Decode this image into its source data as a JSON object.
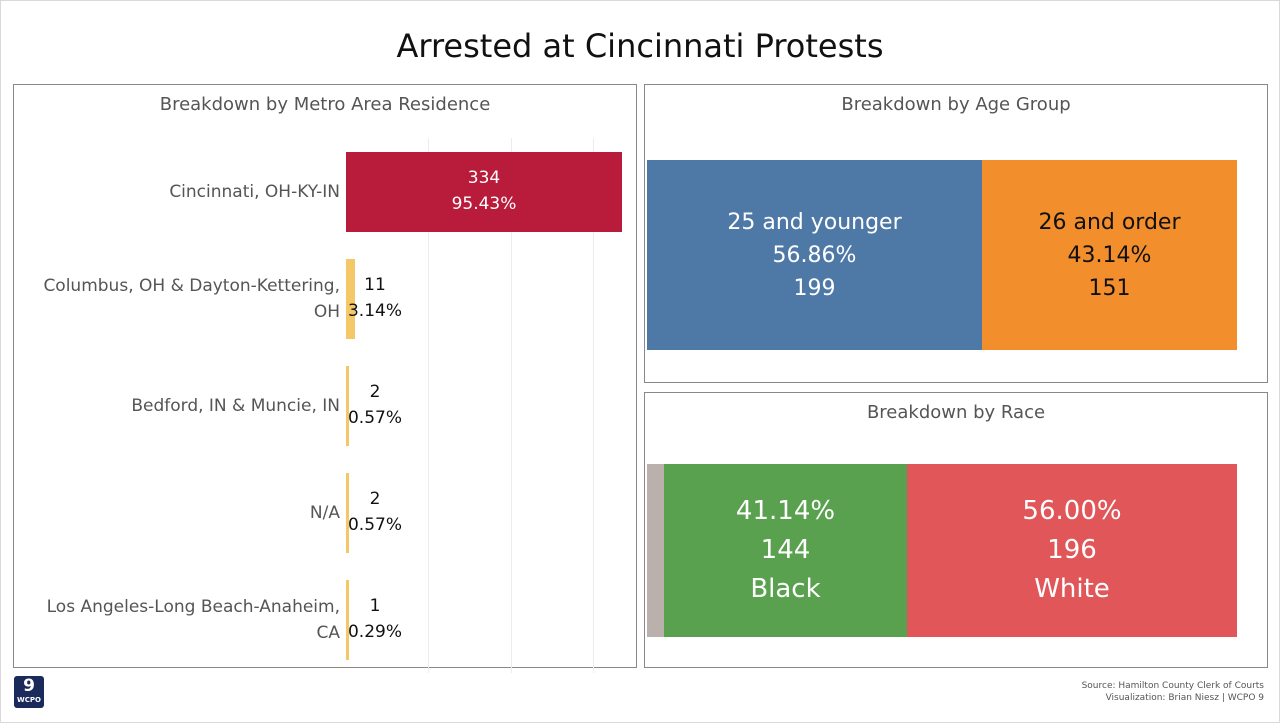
{
  "title": "Arrested at Cincinnati Protests",
  "chart_data": [
    {
      "type": "bar",
      "orientation": "horizontal",
      "title": "Breakdown by Metro Area Residence",
      "categories": [
        "Cincinnati, OH-KY-IN",
        "Columbus, OH & Dayton-Kettering, OH",
        "Bedford, IN & Muncie, IN",
        "N/A",
        "Los Angeles-Long Beach-Anaheim, CA"
      ],
      "label_lines": [
        [
          "Cincinnati, OH-KY-IN"
        ],
        [
          "Columbus, OH & Dayton-Kettering,",
          "OH"
        ],
        [
          "Bedford, IN & Muncie, IN"
        ],
        [
          "N/A"
        ],
        [
          "Los Angeles-Long Beach-Anaheim,",
          "CA"
        ]
      ],
      "values": [
        334,
        11,
        2,
        2,
        1
      ],
      "value_labels": [
        "334",
        "11",
        "2",
        "2",
        "1"
      ],
      "percent_labels": [
        "95.43%",
        "3.14%",
        "0.57%",
        "0.57%",
        "0.29%"
      ],
      "colors": [
        "#b91c3b",
        "#f5c867",
        "#f5c867",
        "#f5c867",
        "#f5c867"
      ],
      "xlim": [
        0,
        334
      ]
    },
    {
      "type": "bar",
      "orientation": "stacked-100",
      "title": "Breakdown by Age Group",
      "segments": [
        {
          "label": "25 and younger",
          "percent_label": "56.86%",
          "value_label": "199",
          "value": 199,
          "color": "#4e79a7",
          "text_color": "#ffffff"
        },
        {
          "label": "26 and order",
          "percent_label": "43.14%",
          "value_label": "151",
          "value": 151,
          "color": "#f28e2b",
          "text_color": "#111111"
        }
      ]
    },
    {
      "type": "bar",
      "orientation": "stacked-100",
      "title": "Breakdown by Race",
      "segments": [
        {
          "label": "",
          "percent_label": "",
          "value_label": "",
          "value": 10,
          "color": "#bab0ac",
          "text_color": "#ffffff"
        },
        {
          "label": "Black",
          "percent_label": "41.14%",
          "value_label": "144",
          "value": 144,
          "color": "#59a14f",
          "text_color": "#ffffff"
        },
        {
          "label": "White",
          "percent_label": "56.00%",
          "value_label": "196",
          "value": 196,
          "color": "#e15759",
          "text_color": "#ffffff"
        }
      ]
    }
  ],
  "footer": {
    "logo_number": "9",
    "logo_text": "WCPO",
    "source": "Source: Hamilton County Clerk of Courts",
    "credit": "Visualization: Brian Niesz | WCPO 9"
  }
}
